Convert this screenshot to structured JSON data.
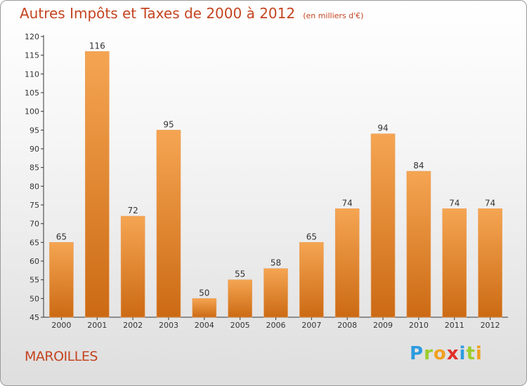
{
  "header": {
    "title": "Autres Impôts et Taxes de 2000 à 2012",
    "unit": "(en milliers d'€)"
  },
  "footer": {
    "commune": "MAROILLES",
    "logo": {
      "letters": [
        "P",
        "r",
        "o",
        "x",
        "i",
        "t",
        "i"
      ],
      "colors": [
        "#2e9be0",
        "#9ccd2a",
        "#f0a020",
        "#e0302a",
        "#2e9be0",
        "#9ccd2a",
        "#f0a020"
      ]
    }
  },
  "chart_data": {
    "type": "bar",
    "title": "Autres Impôts et Taxes de 2000 à 2012",
    "categories": [
      "2000",
      "2001",
      "2002",
      "2003",
      "2004",
      "2005",
      "2006",
      "2007",
      "2008",
      "2009",
      "2010",
      "2011",
      "2012"
    ],
    "values": [
      65,
      116,
      72,
      95,
      50,
      55,
      58,
      65,
      74,
      94,
      84,
      74,
      74
    ],
    "data_labels": [
      "65",
      "116",
      "72",
      "95",
      "50",
      "55",
      "58",
      "65",
      "74",
      "94",
      "84",
      "74",
      "74"
    ],
    "ylim": [
      45,
      120
    ],
    "yticks": [
      "45",
      "50",
      "55",
      "60",
      "65",
      "70",
      "75",
      "80",
      "85",
      "90",
      "95",
      "100",
      "105",
      "110",
      "115",
      "120"
    ],
    "grid": false,
    "bar_color_top": "#f5a552",
    "bar_color_bottom": "#cc6a14"
  }
}
